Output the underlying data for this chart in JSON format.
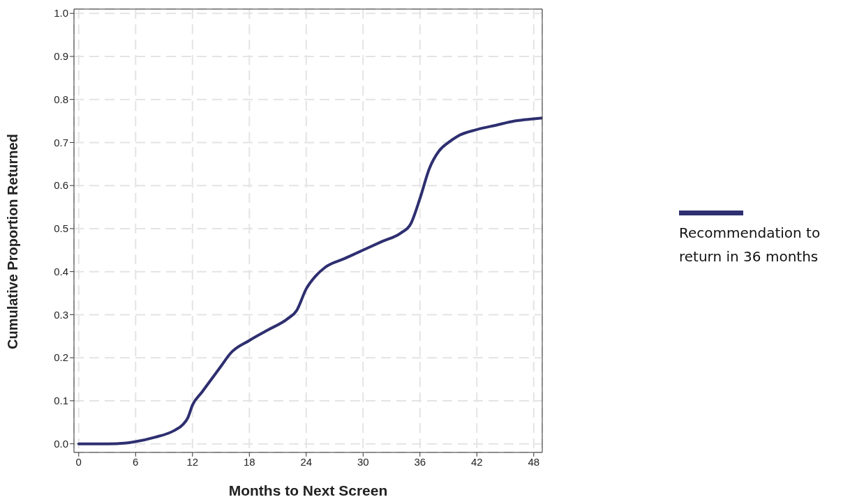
{
  "chart_data": {
    "type": "line",
    "xlabel": "Months to Next Screen",
    "ylabel": "Cumulative Proportion Returned",
    "x": [
      0,
      3,
      5,
      6,
      8,
      10,
      11,
      11.5,
      12,
      13,
      14,
      15,
      16,
      18,
      20,
      22,
      23,
      24,
      25,
      26,
      28,
      30,
      32,
      34,
      35,
      36,
      37,
      38,
      39,
      40,
      42,
      44,
      46,
      48,
      48.9
    ],
    "series": [
      {
        "name": "Recommendation to return in 36 months",
        "color": "#2e2f70",
        "values": [
          0,
          0,
          0.002,
          0.005,
          0.015,
          0.03,
          0.045,
          0.06,
          0.09,
          0.12,
          0.15,
          0.18,
          0.21,
          0.24,
          0.265,
          0.29,
          0.31,
          0.36,
          0.39,
          0.41,
          0.43,
          0.45,
          0.47,
          0.49,
          0.51,
          0.57,
          0.64,
          0.68,
          0.7,
          0.715,
          0.73,
          0.74,
          0.75,
          0.755,
          0.757
        ]
      }
    ],
    "xlim": [
      -0.5,
      48.9
    ],
    "xticks": [
      0,
      6,
      12,
      18,
      24,
      30,
      36,
      42,
      48
    ],
    "ylim": [
      -0.02,
      1.01
    ],
    "yticks": [
      {
        "value": 0,
        "label": "0.0"
      },
      0.1,
      0.2,
      0.3,
      0.4,
      0.5,
      0.6,
      0.7,
      0.8,
      0.9,
      {
        "value": 1,
        "label": "1.0"
      }
    ],
    "grid": true,
    "legend": "right",
    "marker": "none",
    "line_style": "solid"
  }
}
